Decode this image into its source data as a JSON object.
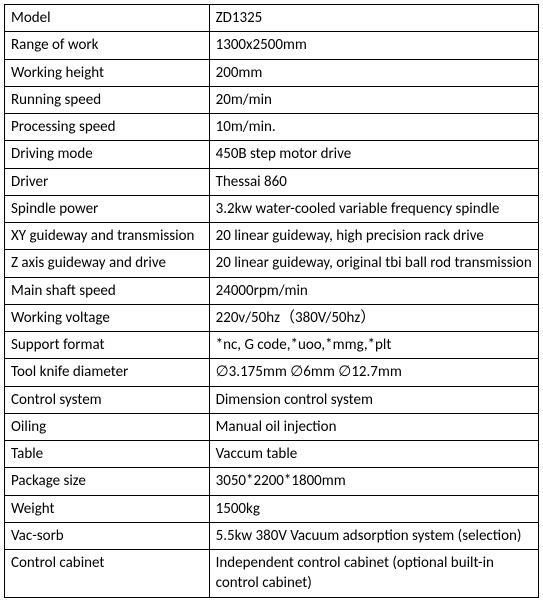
{
  "table": {
    "border_color": "#000000",
    "background_color": "#ffffff",
    "text_color": "#000000",
    "font_size": 15,
    "label_col_width": 205,
    "value_col_width": 330,
    "rows": [
      {
        "label": "Model",
        "value": "ZD1325"
      },
      {
        "label": "Range of work",
        "value": "1300x2500mm"
      },
      {
        "label": "Working height",
        "value": "200mm"
      },
      {
        "label": "Running speed",
        "value": "20m/min"
      },
      {
        "label": "Processing speed",
        "value": "10m/min."
      },
      {
        "label": "Driving mode",
        "value": "450B step motor drive"
      },
      {
        "label": "Driver",
        "value": "Thessai 860"
      },
      {
        "label": "Spindle power",
        "value": "3.2kw water-cooled variable frequency spindle"
      },
      {
        "label": "XY guideway and transmission",
        "value": "20 linear guideway, high precision rack drive"
      },
      {
        "label": "Z axis guideway and drive",
        "value": "20 linear guideway, original tbi ball rod transmission"
      },
      {
        "label": "Main shaft speed",
        "value": "24000rpm/min"
      },
      {
        "label": "Working voltage",
        "value": "220v/50hz（380V/50hz）"
      },
      {
        "label": "Support format",
        "value": "*nc, G code,*uoo,*mmg,*plt"
      },
      {
        "label": "Tool knife diameter",
        "value": "∅3.175mm  ∅6mm  ∅12.7mm"
      },
      {
        "label": "Control system",
        "value": "Dimension control system"
      },
      {
        "label": "Oiling",
        "value": "Manual oil injection"
      },
      {
        "label": "Table",
        "value": "Vaccum table"
      },
      {
        "label": "Package size",
        "value": "3050*2200*1800mm"
      },
      {
        "label": "Weight",
        "value": "1500kg"
      },
      {
        "label": "Vac-sorb",
        "value": "5.5kw 380V Vacuum adsorption system (selection)"
      },
      {
        "label": "Control cabinet",
        "value": "Independent control cabinet (optional built-in control cabinet)"
      }
    ]
  }
}
